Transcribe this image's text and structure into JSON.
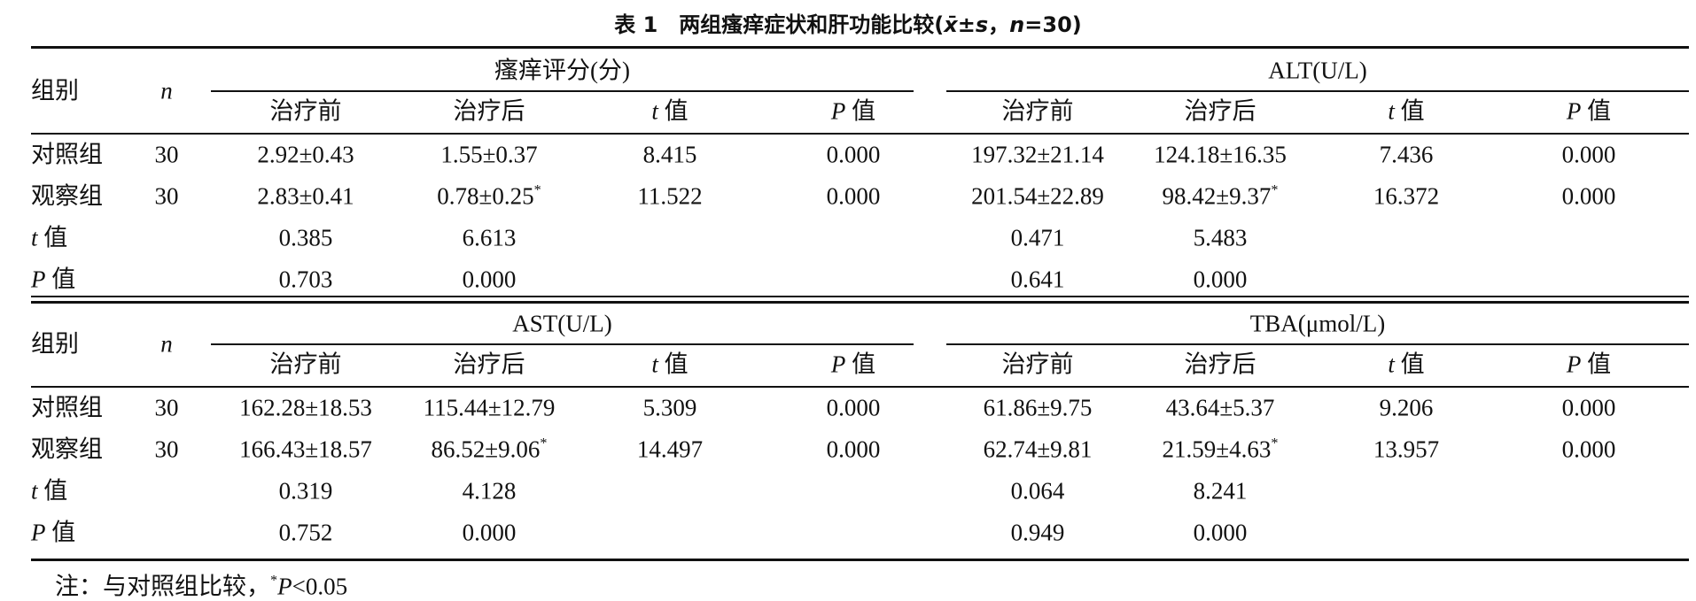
{
  "title": "表 1　两组瘙痒症状和肝功能比较(x̄±s，n=30)",
  "blocks": [
    {
      "group_label": "组别",
      "n_label": "n",
      "groups": [
        {
          "name": "瘙痒评分(分)",
          "columns": [
            "治疗前",
            "治疗后",
            "t 值",
            "P 值"
          ]
        },
        {
          "name": "ALT(U/L)",
          "columns": [
            "治疗前",
            "治疗后",
            "t 值",
            "P 值"
          ]
        }
      ],
      "rows": [
        {
          "label": "对照组",
          "n": "30",
          "cells": [
            "2.92±0.43",
            "1.55±0.37",
            "8.415",
            "0.000",
            "197.32±21.14",
            "124.18±16.35",
            "7.436",
            "0.000"
          ]
        },
        {
          "label": "观察组",
          "n": "30",
          "cells": [
            "2.83±0.41",
            "0.78±0.25*",
            "11.522",
            "0.000",
            "201.54±22.89",
            "98.42±9.37*",
            "16.372",
            "0.000"
          ]
        },
        {
          "label": "t 值",
          "n": null,
          "cells": [
            "0.385",
            "6.613",
            null,
            null,
            "0.471",
            "5.483",
            null,
            null
          ]
        },
        {
          "label": "P 值",
          "n": null,
          "cells": [
            "0.703",
            "0.000",
            null,
            null,
            "0.641",
            "0.000",
            null,
            null
          ]
        }
      ]
    },
    {
      "group_label": "组别",
      "n_label": "n",
      "groups": [
        {
          "name": "AST(U/L)",
          "columns": [
            "治疗前",
            "治疗后",
            "t 值",
            "P 值"
          ]
        },
        {
          "name": "TBA(μmol/L)",
          "columns": [
            "治疗前",
            "治疗后",
            "t 值",
            "P 值"
          ]
        }
      ],
      "rows": [
        {
          "label": "对照组",
          "n": "30",
          "cells": [
            "162.28±18.53",
            "115.44±12.79",
            "5.309",
            "0.000",
            "61.86±9.75",
            "43.64±5.37",
            "9.206",
            "0.000"
          ]
        },
        {
          "label": "观察组",
          "n": "30",
          "cells": [
            "166.43±18.57",
            "86.52±9.06*",
            "14.497",
            "0.000",
            "62.74±9.81",
            "21.59±4.63*",
            "13.957",
            "0.000"
          ]
        },
        {
          "label": "t 值",
          "n": null,
          "cells": [
            "0.319",
            "4.128",
            null,
            null,
            "0.064",
            "8.241",
            null,
            null
          ]
        },
        {
          "label": "P 值",
          "n": null,
          "cells": [
            "0.752",
            "0.000",
            null,
            null,
            "0.949",
            "0.000",
            null,
            null
          ]
        }
      ]
    }
  ],
  "note": "注：与对照组比较，*P<0.05"
}
